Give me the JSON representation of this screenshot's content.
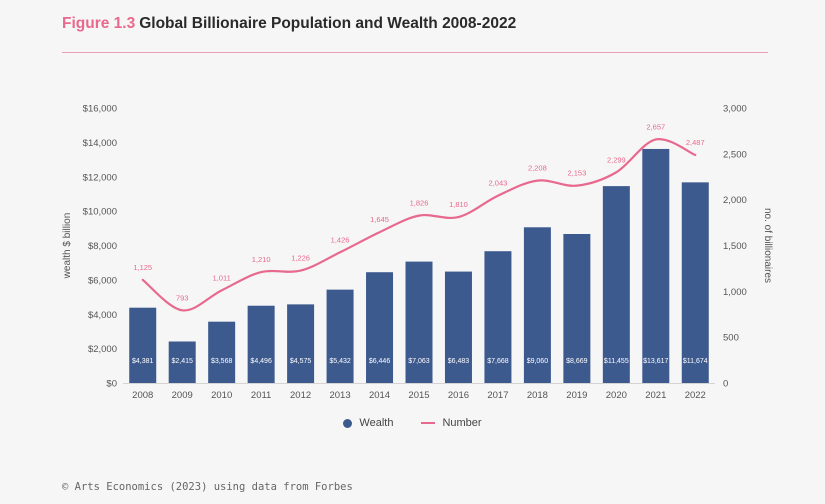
{
  "header": {
    "figure_label": "Figure 1.3",
    "title": "Global Billionaire Population and Wealth 2008-2022"
  },
  "source": "© Arts Economics (2023) using data from Forbes",
  "colors": {
    "wealth": "#3d5a8f",
    "number": "#e8698e",
    "rule": "#eb9db4"
  },
  "chart_data": {
    "type": "bar",
    "categories": [
      "2008",
      "2009",
      "2010",
      "2011",
      "2012",
      "2013",
      "2014",
      "2015",
      "2016",
      "2017",
      "2018",
      "2019",
      "2020",
      "2021",
      "2022"
    ],
    "series": [
      {
        "name": "Wealth",
        "type": "bar",
        "axis": "left",
        "values": [
          4381,
          2415,
          3568,
          4496,
          4575,
          5432,
          6446,
          7063,
          6483,
          7668,
          9060,
          8669,
          11455,
          13617,
          11674
        ],
        "labels": [
          "$4,381",
          "$2,415",
          "$3,568",
          "$4,496",
          "$4,575",
          "$5,432",
          "$6,446",
          "$7,063",
          "$6,483",
          "$7,668",
          "$9,060",
          "$8,669",
          "$11,455",
          "$13,617",
          "$11,674"
        ]
      },
      {
        "name": "Number",
        "type": "line",
        "axis": "right",
        "values": [
          1125,
          793,
          1011,
          1210,
          1226,
          1426,
          1645,
          1826,
          1810,
          2043,
          2208,
          2153,
          2299,
          2657,
          2487
        ],
        "labels": [
          "1,125",
          "793",
          "1,011",
          "1,210",
          "1,226",
          "1,426",
          "1,645",
          "1,826",
          "1,810",
          "2,043",
          "2,208",
          "2,153",
          "2,299",
          "2,657",
          "2,487"
        ]
      }
    ],
    "ylabel": "wealth $ billion",
    "y2label": "no. of billionaires",
    "ylim": [
      0,
      16000
    ],
    "y2lim": [
      0,
      3000
    ],
    "yticks": [
      "$0",
      "$2,000",
      "$4,000",
      "$6,000",
      "$8,000",
      "$10,000",
      "$12,000",
      "$14,000",
      "$16,000"
    ],
    "y2ticks": [
      "0",
      "500",
      "1,000",
      "1,500",
      "2,000",
      "2,500",
      "3,000"
    ],
    "grid": false,
    "legend": "bottom-center"
  }
}
